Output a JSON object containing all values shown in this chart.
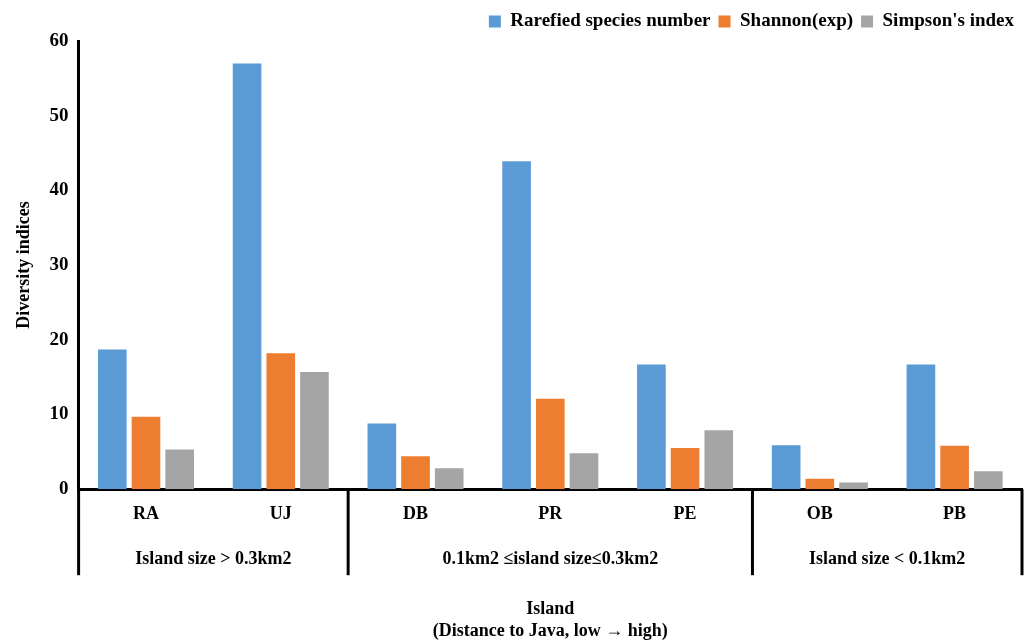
{
  "chart_data": {
    "type": "bar",
    "xlabel": "Island\n(Distance to Java, low → high)",
    "ylabel": "Diversity indices",
    "categories": [
      "RA",
      "UJ",
      "DB",
      "PR",
      "PE",
      "OB",
      "PB"
    ],
    "series": [
      {
        "name": "Rarefied species number",
        "color": "#5b9bd5",
        "values": [
          18.7,
          57,
          8.8,
          43.9,
          16.7,
          5.9,
          16.7
        ]
      },
      {
        "name": "Shannon(exp)",
        "color": "#ed7d31",
        "values": [
          9.7,
          18.2,
          4.4,
          12.1,
          5.5,
          1.4,
          5.8
        ]
      },
      {
        "name": "Simpson's index",
        "color": "#a5a5a5",
        "values": [
          5.3,
          15.7,
          2.8,
          4.8,
          7.9,
          0.9,
          2.4
        ]
      }
    ],
    "ylim": [
      0,
      60
    ],
    "yticks": [
      0,
      10,
      20,
      30,
      40,
      50,
      60
    ],
    "grid": false,
    "legend": "top right",
    "annotations": [
      "Island size > 0.3km2",
      "0.1km2 ≤island size≤0.3km2",
      "Island size < 0.1km2"
    ]
  }
}
